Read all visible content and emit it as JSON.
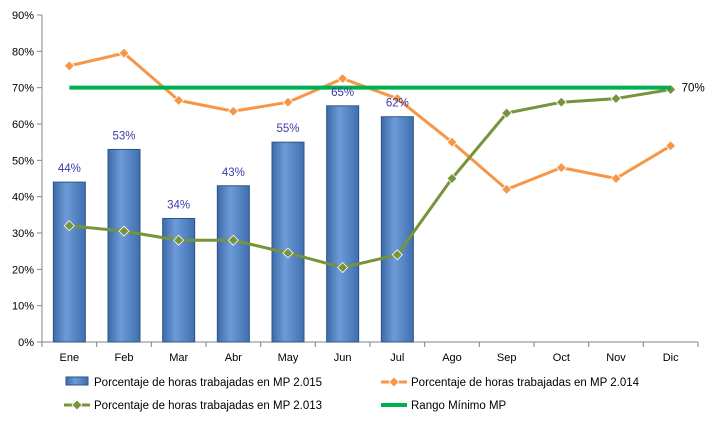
{
  "chart_data": {
    "type": "bar+line",
    "categories": [
      "Ene",
      "Feb",
      "Mar",
      "Abr",
      "May",
      "Jun",
      "Jul",
      "Ago",
      "Sep",
      "Oct",
      "Nov",
      "Dic"
    ],
    "y_ticks": [
      "0%",
      "10%",
      "20%",
      "30%",
      "40%",
      "50%",
      "60%",
      "70%",
      "80%",
      "90%"
    ],
    "ylim": [
      0,
      90
    ],
    "grid": false,
    "legend_position": "bottom",
    "series": [
      {
        "name": "Porcentaje de horas trabajadas en MP 2.015",
        "type": "bar",
        "color": "#4f81bd",
        "values": [
          44,
          53,
          34,
          43,
          55,
          65,
          62,
          null,
          null,
          null,
          null,
          null
        ],
        "data_labels": [
          "44%",
          "53%",
          "34%",
          "43%",
          "55%",
          "65%",
          "62%"
        ]
      },
      {
        "name": "Porcentaje de horas trabajadas en MP 2.014",
        "type": "line",
        "marker": "diamond",
        "color": "#f79646",
        "values": [
          76,
          79.5,
          66.5,
          63.5,
          66,
          72.5,
          67,
          55,
          42,
          48,
          45,
          54
        ]
      },
      {
        "name": "Porcentaje de horas trabajadas en MP 2.013",
        "type": "line",
        "marker": "diamond",
        "color": "#77933c",
        "values": [
          32,
          30.5,
          28,
          28,
          24.5,
          20.5,
          24,
          45,
          63,
          66,
          67,
          69.5
        ]
      },
      {
        "name": "Rango Mínimo MP",
        "type": "line",
        "marker": "none",
        "color": "#00b050",
        "values": [
          70,
          70,
          70,
          70,
          70,
          70,
          70,
          70,
          70,
          70,
          70,
          70
        ],
        "end_label": "70%"
      }
    ]
  }
}
